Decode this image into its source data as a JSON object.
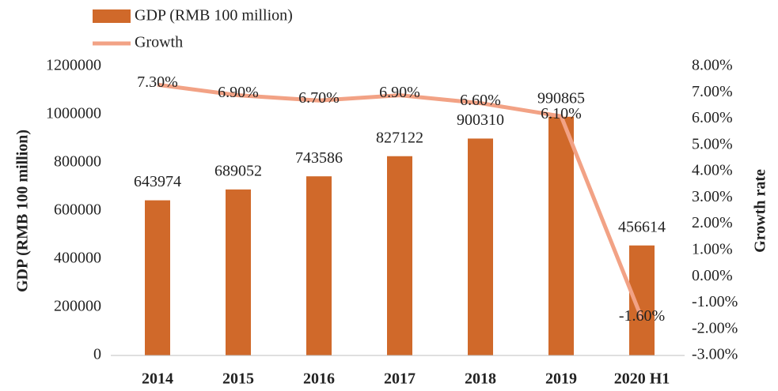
{
  "chart_data": {
    "type": "bar_line",
    "categories": [
      "2014",
      "2015",
      "2016",
      "2017",
      "2018",
      "2019",
      "2020 H1"
    ],
    "series": [
      {
        "name": "GDP (RMB 100 million)",
        "color": "#d0692a",
        "values": [
          643974,
          689052,
          743586,
          827122,
          900310,
          990865,
          456614
        ]
      },
      {
        "name": "Growth",
        "color": "#f2a285",
        "axis": "y2",
        "values": [
          7.3,
          6.9,
          6.7,
          6.9,
          6.6,
          6.1,
          -1.6
        ],
        "value_labels": [
          "7.30%",
          "6.90%",
          "6.70%",
          "6.90%",
          "6.60%",
          "6.10%",
          "-1.60%"
        ]
      }
    ],
    "ylabel": "GDP (RMB 100 million)",
    "y2label": "Growth rate",
    "ylim": [
      0,
      1200000
    ],
    "yticks": [
      0,
      200000,
      400000,
      600000,
      800000,
      1000000,
      1200000
    ],
    "y2lim": [
      -3,
      8
    ],
    "y2ticks": [
      {
        "value": -3,
        "label": "-3.00%"
      },
      {
        "value": -2,
        "label": "-2.00%"
      },
      {
        "value": -1,
        "label": "-1.00%"
      },
      {
        "value": 0,
        "label": "0.00%"
      },
      {
        "value": 1,
        "label": "1.00%"
      },
      {
        "value": 2,
        "label": "2.00%"
      },
      {
        "value": 3,
        "label": "3.00%"
      },
      {
        "value": 4,
        "label": "4.00%"
      },
      {
        "value": 5,
        "label": "5.00%"
      },
      {
        "value": 6,
        "label": "6.00%"
      },
      {
        "value": 7,
        "label": "7.00%"
      },
      {
        "value": 8,
        "label": "8.00%"
      }
    ],
    "legend": "top-left"
  }
}
